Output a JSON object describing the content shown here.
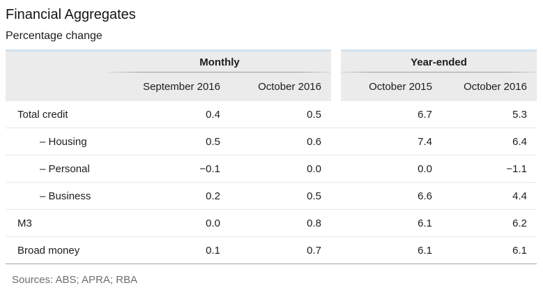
{
  "page": {
    "title": "Financial Aggregates",
    "subtitle": "Percentage change",
    "sources": "Sources: ABS; APRA; RBA"
  },
  "table": {
    "groups": [
      {
        "label": "Monthly",
        "columns": [
          "September 2016",
          "October 2016"
        ]
      },
      {
        "label": "Year-ended",
        "columns": [
          "October 2015",
          "October 2016"
        ]
      }
    ],
    "rows": [
      {
        "label": "Total credit",
        "values": [
          "0.4",
          "0.5",
          "6.7",
          "5.3"
        ]
      },
      {
        "label": "– Housing",
        "values": [
          "0.5",
          "0.6",
          "7.4",
          "6.4"
        ]
      },
      {
        "label": "– Personal",
        "values": [
          "−0.1",
          "0.0",
          "0.0",
          "−1.1"
        ]
      },
      {
        "label": "– Business",
        "values": [
          "0.2",
          "0.5",
          "6.6",
          "4.4"
        ]
      },
      {
        "label": "M3",
        "values": [
          "0.0",
          "0.8",
          "6.1",
          "6.2"
        ]
      },
      {
        "label": "Broad money",
        "values": [
          "0.1",
          "0.7",
          "6.1",
          "6.1"
        ]
      }
    ]
  },
  "colors": {
    "top_border": "#cfe3f2",
    "header_background": "#ebebeb",
    "row_separator": "#e6e6e6",
    "bottom_border": "#a6a6a6",
    "group_underline": "#9e9e9e",
    "text": "#1c1c1c",
    "sources_text": "#6d6d6d"
  },
  "chart_data": {
    "type": "table",
    "title": "Financial Aggregates",
    "subtitle": "Percentage change",
    "units": "percentage change",
    "column_groups": [
      {
        "group": "Monthly",
        "columns": [
          "September 2016",
          "October 2016"
        ]
      },
      {
        "group": "Year-ended",
        "columns": [
          "October 2015",
          "October 2016"
        ]
      }
    ],
    "rows": [
      {
        "label": "Total credit",
        "indent": false,
        "monthly_sep_2016": 0.4,
        "monthly_oct_2016": 0.5,
        "year_ended_oct_2015": 6.7,
        "year_ended_oct_2016": 5.3
      },
      {
        "label": "Housing",
        "indent": true,
        "monthly_sep_2016": 0.5,
        "monthly_oct_2016": 0.6,
        "year_ended_oct_2015": 7.4,
        "year_ended_oct_2016": 6.4
      },
      {
        "label": "Personal",
        "indent": true,
        "monthly_sep_2016": -0.1,
        "monthly_oct_2016": 0.0,
        "year_ended_oct_2015": 0.0,
        "year_ended_oct_2016": -1.1
      },
      {
        "label": "Business",
        "indent": true,
        "monthly_sep_2016": 0.2,
        "monthly_oct_2016": 0.5,
        "year_ended_oct_2015": 6.6,
        "year_ended_oct_2016": 4.4
      },
      {
        "label": "M3",
        "indent": false,
        "monthly_sep_2016": 0.0,
        "monthly_oct_2016": 0.8,
        "year_ended_oct_2015": 6.1,
        "year_ended_oct_2016": 6.2
      },
      {
        "label": "Broad money",
        "indent": false,
        "monthly_sep_2016": 0.1,
        "monthly_oct_2016": 0.7,
        "year_ended_oct_2015": 6.1,
        "year_ended_oct_2016": 6.1
      }
    ],
    "sources": [
      "ABS",
      "APRA",
      "RBA"
    ]
  }
}
